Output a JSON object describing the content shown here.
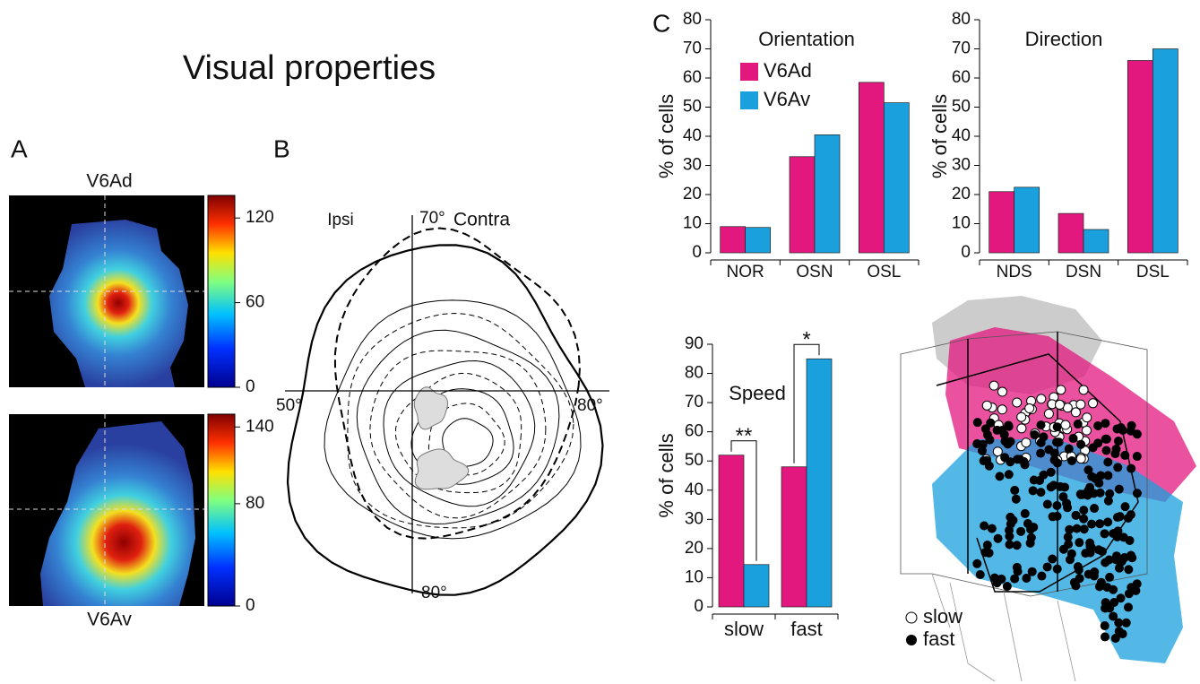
{
  "title": "Visual properties",
  "panels": [
    "A",
    "B",
    "C"
  ],
  "panel_a": {
    "maps": [
      {
        "label": "V6Ad",
        "clim": [
          0,
          136
        ],
        "cticks": [
          0,
          60,
          120
        ]
      },
      {
        "label": "V6Av",
        "clim": [
          0,
          150
        ],
        "cticks": [
          0,
          80,
          140
        ]
      }
    ]
  },
  "panel_b": {
    "ipsi": "Ipsi",
    "contra": "Contra",
    "top": "70°",
    "bottom": "80°",
    "left": "50°",
    "right": "80°"
  },
  "panel_brain": {
    "legend": [
      "slow",
      "fast"
    ]
  },
  "chart_data": [
    {
      "type": "bar",
      "title": "Orientation",
      "y_label": "% of cells",
      "categories": [
        "NOR",
        "OSN",
        "OSL"
      ],
      "series": [
        {
          "name": "V6Ad",
          "color": "#e3187f",
          "values": [
            9,
            33,
            58.5
          ]
        },
        {
          "name": "V6Av",
          "color": "#1aa0dc",
          "values": [
            8.7,
            40.5,
            51.5
          ]
        }
      ],
      "ylim": [
        0,
        80
      ],
      "yticks": [
        0,
        10,
        20,
        30,
        40,
        50,
        60,
        70,
        80
      ]
    },
    {
      "type": "bar",
      "title": "Direction",
      "y_label": "% of cells",
      "categories": [
        "NDS",
        "DSN",
        "DSL"
      ],
      "series": [
        {
          "color": "#e3187f",
          "values": [
            21,
            13.5,
            66
          ]
        },
        {
          "color": "#1aa0dc",
          "values": [
            22.5,
            8,
            70
          ]
        }
      ],
      "ylim": [
        0,
        80
      ],
      "yticks": [
        0,
        10,
        20,
        30,
        40,
        50,
        60,
        70,
        80
      ]
    },
    {
      "type": "bar",
      "title": "Speed",
      "y_label": "% of cells",
      "categories": [
        "slow",
        "fast"
      ],
      "series": [
        {
          "color": "#e3187f",
          "values": [
            52,
            48
          ]
        },
        {
          "color": "#1aa0dc",
          "values": [
            14.5,
            85
          ]
        }
      ],
      "annotations": [
        "**",
        "*"
      ],
      "ylim": [
        0,
        90
      ],
      "yticks": [
        0,
        10,
        20,
        30,
        40,
        50,
        60,
        70,
        80,
        90
      ]
    }
  ]
}
